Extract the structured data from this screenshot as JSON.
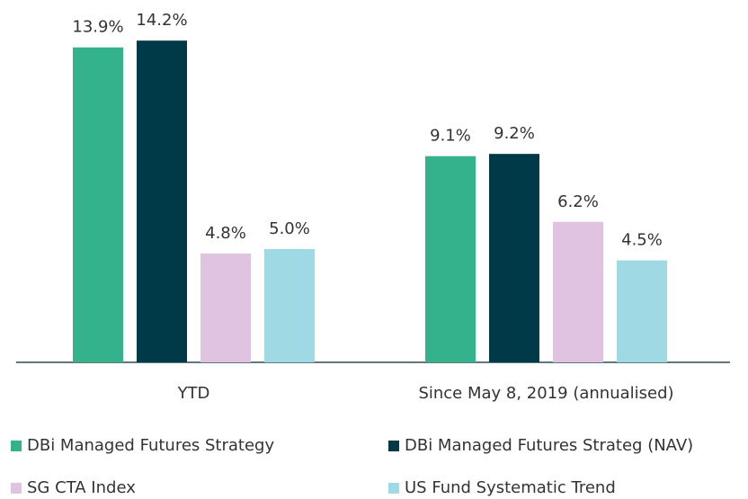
{
  "chart_data": {
    "type": "bar",
    "categories": [
      "YTD",
      "Since May 8, 2019 (annualised)"
    ],
    "series": [
      {
        "name": "DBi Managed Futures Strategy",
        "color": "#33b28b",
        "values": [
          13.9,
          9.1
        ],
        "value_labels": [
          "13.9%",
          "9.1%"
        ]
      },
      {
        "name": "DBi Managed Futures Strateg (NAV)",
        "color": "#003a48",
        "values": [
          14.2,
          9.2
        ],
        "value_labels": [
          "14.2%",
          "9.2%"
        ]
      },
      {
        "name": "SG CTA Index",
        "color": "#dfc3e0",
        "values": [
          4.8,
          6.2
        ],
        "value_labels": [
          "4.8%",
          "6.2%"
        ]
      },
      {
        "name": "US Fund Systematic Trend",
        "color": "#9fd9e4",
        "values": [
          5.0,
          4.5
        ],
        "value_labels": [
          "5.0%",
          "4.5%"
        ]
      }
    ],
    "legend": "bottom"
  }
}
